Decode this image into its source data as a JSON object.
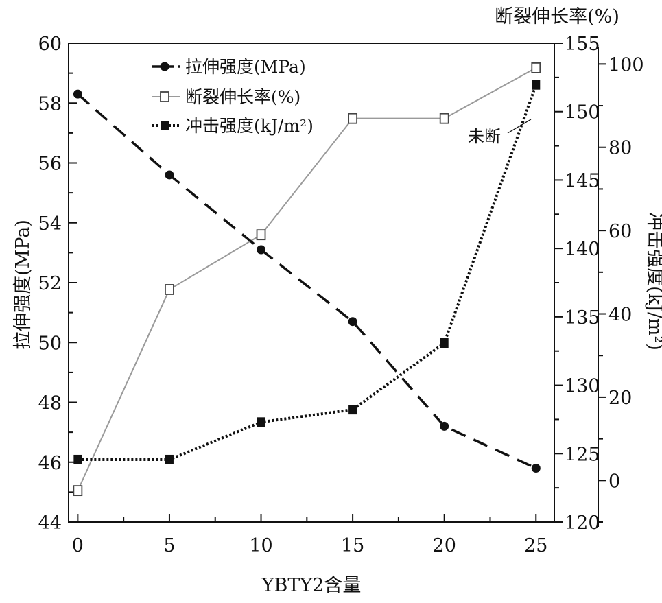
{
  "chart_data": {
    "type": "line",
    "xlabel": "YBTY2含量",
    "x": [
      0,
      5,
      10,
      15,
      20,
      25
    ],
    "x_ticks": [
      "0",
      "5",
      "10",
      "15",
      "20",
      "25"
    ],
    "xlim": [
      -0.5,
      26
    ],
    "axes": {
      "left": {
        "label": "拉伸强度(MPa)",
        "ylim": [
          44,
          60
        ],
        "ticks": [
          "44",
          "46",
          "48",
          "50",
          "52",
          "54",
          "56",
          "58",
          "60"
        ]
      },
      "right_inner": {
        "label": "断裂伸长率(%)",
        "ylim": [
          120,
          155
        ],
        "ticks": [
          "120",
          "125",
          "130",
          "135",
          "140",
          "145",
          "150",
          "155"
        ]
      },
      "right_outer": {
        "label": "冲击强度(kJ/m²)",
        "ylim": [
          -10,
          105
        ],
        "ticks": [
          "0",
          "20",
          "40",
          "60",
          "80",
          "100"
        ]
      }
    },
    "series": [
      {
        "name": "拉伸强度(MPa)",
        "axis": "left",
        "style": "dashed",
        "marker": "filled-circle",
        "values": [
          58.3,
          55.6,
          53.1,
          50.7,
          47.2,
          45.8
        ]
      },
      {
        "name": "断裂伸长率(%)",
        "axis": "right_inner",
        "style": "solid-gray",
        "marker": "open-square",
        "values": [
          122.3,
          137.0,
          141.0,
          149.5,
          149.5,
          153.2
        ]
      },
      {
        "name": "冲击强度(kJ/m²)",
        "axis": "right_outer",
        "style": "dotted",
        "marker": "filled-square",
        "values": [
          5,
          5,
          14,
          17,
          33,
          95
        ]
      }
    ],
    "annotations": [
      {
        "text": "未断",
        "series": "冲击强度(kJ/m²)",
        "x": 25
      }
    ],
    "legend": {
      "placement": "top-left"
    },
    "grid": false
  }
}
